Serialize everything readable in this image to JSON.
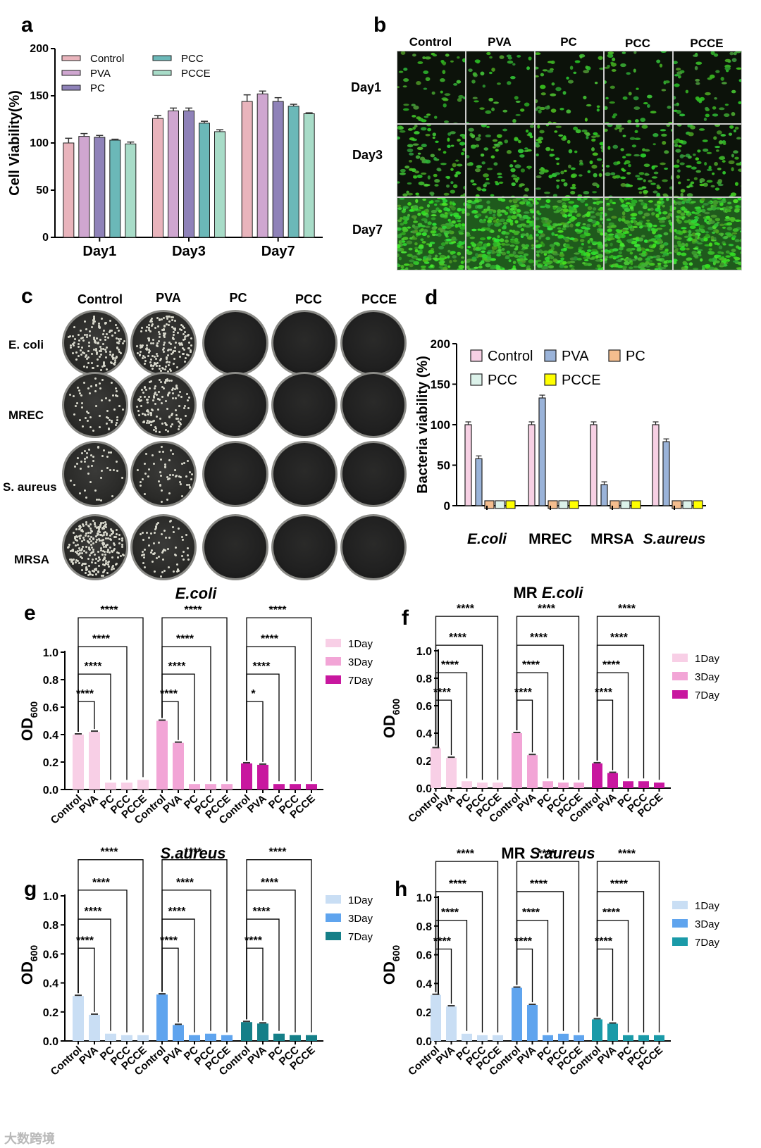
{
  "panels": {
    "a": {
      "label": "a"
    },
    "b": {
      "label": "b"
    },
    "c": {
      "label": "c"
    },
    "d": {
      "label": "d"
    },
    "e": {
      "label": "e"
    },
    "f": {
      "label": "f"
    },
    "g": {
      "label": "g"
    },
    "h": {
      "label": "h"
    }
  },
  "colors": {
    "a_series": [
      "#e9b4bc",
      "#cfa6d0",
      "#8f82b9",
      "#6bb8b8",
      "#a8dcc8"
    ],
    "d_series": [
      "#f7d0e4",
      "#9ab3d9",
      "#f4bd8e",
      "#dcf2ea",
      "#ffff00"
    ],
    "pink_days": [
      "#f8cfe6",
      "#f2a5d6",
      "#c8179f"
    ],
    "blue_e_days": [
      "#c9def4",
      "#5fa4ee",
      "#157f88"
    ],
    "blue_h_days": [
      "#c9def4",
      "#5fa4ee",
      "#1a9aa8"
    ]
  },
  "fluorescence": {
    "columns": [
      "Control",
      "PVA",
      "PC",
      "PCC",
      "PCCE"
    ],
    "rows": [
      "Day1",
      "Day3",
      "Day7"
    ]
  },
  "plates": {
    "columns": [
      "Control",
      "PVA",
      "PC",
      "PCC",
      "PCCE"
    ],
    "rows": [
      "E. coli",
      "MREC",
      "S. aureus",
      "MRSA"
    ]
  },
  "watermark": "大数跨境",
  "chart_data": [
    {
      "id": "a",
      "type": "bar",
      "ylabel": "Cell Viability(%)",
      "ylim": [
        0,
        200
      ],
      "yticks": [
        0,
        50,
        100,
        150,
        200
      ],
      "categories": [
        "Day1",
        "Day3",
        "Day7"
      ],
      "series": [
        {
          "name": "Control",
          "values": [
            100,
            126,
            144
          ],
          "errors": [
            5,
            3,
            7
          ]
        },
        {
          "name": "PVA",
          "values": [
            107,
            134,
            152
          ],
          "errors": [
            3,
            3,
            3
          ]
        },
        {
          "name": "PC",
          "values": [
            106,
            134,
            144
          ],
          "errors": [
            2,
            3,
            4
          ]
        },
        {
          "name": "PCC",
          "values": [
            103,
            121,
            139
          ],
          "errors": [
            1,
            2,
            2
          ]
        },
        {
          "name": "PCCE",
          "values": [
            99,
            112,
            131
          ],
          "errors": [
            2,
            2,
            1
          ]
        }
      ],
      "legend": "top-left"
    },
    {
      "id": "d",
      "type": "bar",
      "ylabel": "Bacteria viability (%)",
      "ylim": [
        0,
        200
      ],
      "yticks": [
        0,
        50,
        100,
        150,
        200
      ],
      "categories": [
        "E.coli",
        "MREC",
        "MRSA",
        "S.aureus"
      ],
      "series": [
        {
          "name": "Control",
          "values": [
            100,
            100,
            100,
            100
          ]
        },
        {
          "name": "PVA",
          "values": [
            58,
            133,
            26,
            79
          ]
        },
        {
          "name": "PC",
          "values": [
            0,
            0,
            0,
            0
          ]
        },
        {
          "name": "PCC",
          "values": [
            0,
            0,
            0,
            0
          ]
        },
        {
          "name": "PCCE",
          "values": [
            0,
            0,
            0,
            0
          ]
        }
      ],
      "legend": "top"
    },
    {
      "id": "e",
      "type": "bar",
      "title_prefix": "",
      "title": "E.coli",
      "ylabel_main": "OD",
      "ylabel_sub": "600",
      "ylim": [
        0,
        1.0
      ],
      "yticks": [
        "0.0",
        "0.2",
        "0.4",
        "0.6",
        "0.8",
        "1.0"
      ],
      "categories": [
        "Control",
        "PVA",
        "PC",
        "PCC",
        "PCCE"
      ],
      "groups": [
        "1Day",
        "3Day",
        "7Day"
      ],
      "series": [
        {
          "name": "1Day",
          "values": [
            0.4,
            0.42,
            0.05,
            0.05,
            0.07
          ]
        },
        {
          "name": "3Day",
          "values": [
            0.5,
            0.34,
            0.04,
            0.04,
            0.04
          ]
        },
        {
          "name": "7Day",
          "values": [
            0.19,
            0.18,
            0.04,
            0.04,
            0.04
          ]
        }
      ],
      "significance": [
        [
          "****",
          "****",
          "****",
          "****"
        ],
        [
          "****",
          "****",
          "****",
          "****"
        ],
        [
          "*",
          "****",
          "****",
          "****"
        ]
      ]
    },
    {
      "id": "f",
      "type": "bar",
      "title_prefix": "MR ",
      "title": "E.coli",
      "ylabel_main": "OD",
      "ylabel_sub": "600",
      "ylim": [
        0,
        1.0
      ],
      "yticks": [
        "0.0",
        "0.2",
        "0.4",
        "0.6",
        "0.8",
        "1.0"
      ],
      "categories": [
        "Control",
        "PVA",
        "PC",
        "PCC",
        "PCCE"
      ],
      "groups": [
        "1Day",
        "3Day",
        "7Day"
      ],
      "series": [
        {
          "name": "1Day",
          "values": [
            0.29,
            0.22,
            0.05,
            0.04,
            0.04
          ]
        },
        {
          "name": "3Day",
          "values": [
            0.4,
            0.24,
            0.05,
            0.04,
            0.04
          ]
        },
        {
          "name": "7Day",
          "values": [
            0.18,
            0.11,
            0.05,
            0.05,
            0.04
          ]
        }
      ],
      "significance": [
        [
          "****",
          "****",
          "****",
          "****"
        ],
        [
          "****",
          "****",
          "****",
          "****"
        ],
        [
          "****",
          "****",
          "****",
          "****"
        ]
      ]
    },
    {
      "id": "g",
      "type": "bar",
      "title_prefix": "",
      "title": "S.aureus",
      "ylabel_main": "OD",
      "ylabel_sub": "600",
      "ylim": [
        0,
        1.0
      ],
      "yticks": [
        "0.0",
        "0.2",
        "0.4",
        "0.6",
        "0.8",
        "1.0"
      ],
      "categories": [
        "Control",
        "PVA",
        "PC",
        "PCC",
        "PCCE"
      ],
      "groups": [
        "1Day",
        "3Day",
        "7Day"
      ],
      "series": [
        {
          "name": "1Day",
          "values": [
            0.31,
            0.18,
            0.05,
            0.04,
            0.04
          ]
        },
        {
          "name": "3Day",
          "values": [
            0.32,
            0.11,
            0.04,
            0.05,
            0.04
          ]
        },
        {
          "name": "7Day",
          "values": [
            0.13,
            0.12,
            0.05,
            0.04,
            0.04
          ]
        }
      ],
      "significance": [
        [
          "****",
          "****",
          "****",
          "****"
        ],
        [
          "****",
          "****",
          "****",
          "****"
        ],
        [
          "****",
          "****",
          "****",
          "****"
        ]
      ]
    },
    {
      "id": "h",
      "type": "bar",
      "title_prefix": "MR ",
      "title": "S.aureus",
      "ylabel_main": "OD",
      "ylabel_sub": "600",
      "ylim": [
        0,
        1.0
      ],
      "yticks": [
        "0.0",
        "0.2",
        "0.4",
        "0.6",
        "0.8",
        "1.0"
      ],
      "categories": [
        "Control",
        "PVA",
        "PC",
        "PCC",
        "PCCE"
      ],
      "groups": [
        "1Day",
        "3Day",
        "7Day"
      ],
      "series": [
        {
          "name": "1Day",
          "values": [
            0.32,
            0.24,
            0.05,
            0.04,
            0.04
          ]
        },
        {
          "name": "3Day",
          "values": [
            0.37,
            0.25,
            0.04,
            0.05,
            0.04
          ]
        },
        {
          "name": "7Day",
          "values": [
            0.15,
            0.12,
            0.04,
            0.04,
            0.04
          ]
        }
      ],
      "significance": [
        [
          "****",
          "****",
          "****",
          "****"
        ],
        [
          "****",
          "****",
          "****",
          "****"
        ],
        [
          "****",
          "****",
          "****",
          "****"
        ]
      ]
    }
  ]
}
